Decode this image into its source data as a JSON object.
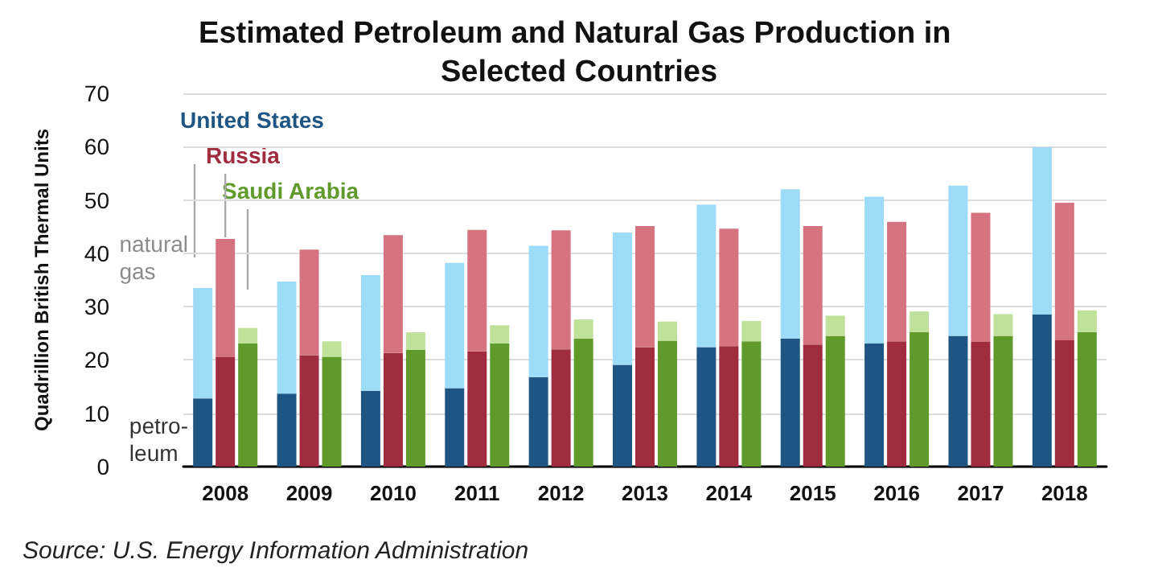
{
  "chart_data": {
    "type": "bar",
    "title": "Estimated Petroleum and Natural Gas Production in Selected Countries",
    "ylabel": "Quadrillion British Thermal Units",
    "stacked": true,
    "categories": [
      null,
      "2008",
      null,
      null,
      "2009",
      null,
      null,
      "2010",
      null,
      null,
      "2011",
      null,
      null,
      "2012",
      null,
      null,
      "2013",
      null,
      null,
      "2014",
      null,
      null,
      "2015",
      null,
      null,
      "2016",
      null,
      null,
      "2017",
      null,
      null,
      "2018",
      null
    ],
    "series": [
      {
        "colors": [
          "#1f5582",
          "#a02c3f",
          "#5f9a2a",
          "#1f5582",
          "#a02c3f",
          "#5f9a2a",
          "#1f5582",
          "#a02c3f",
          "#5f9a2a",
          "#1f5582",
          "#a02c3f",
          "#5f9a2a",
          "#1f5582",
          "#a02c3f",
          "#5f9a2a",
          "#1f5582",
          "#a02c3f",
          "#5f9a2a",
          "#1f5582",
          "#a02c3f",
          "#5f9a2a",
          "#1f5582",
          "#a02c3f",
          "#5f9a2a",
          "#1f5582",
          "#a02c3f",
          "#5f9a2a",
          "#1f5582",
          "#a02c3f",
          "#5f9a2a",
          "#1f5582",
          "#a02c3f",
          "#5f9a2a"
        ],
        "values": [
          12.8,
          20.5,
          23.1,
          13.7,
          20.9,
          20.6,
          14.2,
          21.3,
          21.9,
          14.7,
          21.6,
          23.1,
          16.8,
          22.0,
          24.0,
          19.1,
          22.4,
          23.6,
          22.4,
          22.6,
          23.5,
          24.0,
          22.9,
          24.5,
          23.1,
          23.5,
          25.2,
          24.5,
          23.4,
          24.5,
          28.5,
          23.7,
          25.2
        ]
      },
      {
        "colors": [
          "#9ddcf9",
          "#d57480",
          "#bfe19a",
          "#9ddcf9",
          "#d57480",
          "#bfe19a",
          "#9ddcf9",
          "#d57480",
          "#bfe19a",
          "#9ddcf9",
          "#d57480",
          "#bfe19a",
          "#9ddcf9",
          "#d57480",
          "#bfe19a",
          "#9ddcf9",
          "#d57480",
          "#bfe19a",
          "#9ddcf9",
          "#d57480",
          "#bfe19a",
          "#9ddcf9",
          "#d57480",
          "#bfe19a",
          "#9ddcf9",
          "#d57480",
          "#bfe19a",
          "#9ddcf9",
          "#d57480",
          "#bfe19a",
          "#9ddcf9",
          "#d57480",
          "#bfe19a"
        ],
        "values": [
          20.7,
          22.2,
          2.9,
          21.0,
          19.8,
          2.9,
          21.7,
          22.1,
          3.3,
          23.5,
          22.8,
          3.4,
          24.6,
          22.3,
          3.6,
          24.8,
          22.7,
          3.6,
          26.7,
          22.0,
          3.8,
          28.0,
          22.2,
          3.8,
          27.5,
          22.4,
          3.9,
          28.2,
          24.2,
          4.1,
          31.4,
          25.8,
          4.1
        ]
      }
    ],
    "ylim": [
      0,
      70
    ],
    "yticks": [
      0,
      10,
      20,
      30,
      40,
      50,
      60,
      70
    ],
    "grid": "y",
    "legend": false,
    "annotations": [
      "United States",
      {
        "text": "Russia",
        "x": "2008",
        "y": 43
      },
      "Saudi Arabia",
      "natural\ngas",
      "petro-\nleum",
      "Source: U.S. Energy Information Administration"
    ]
  }
}
